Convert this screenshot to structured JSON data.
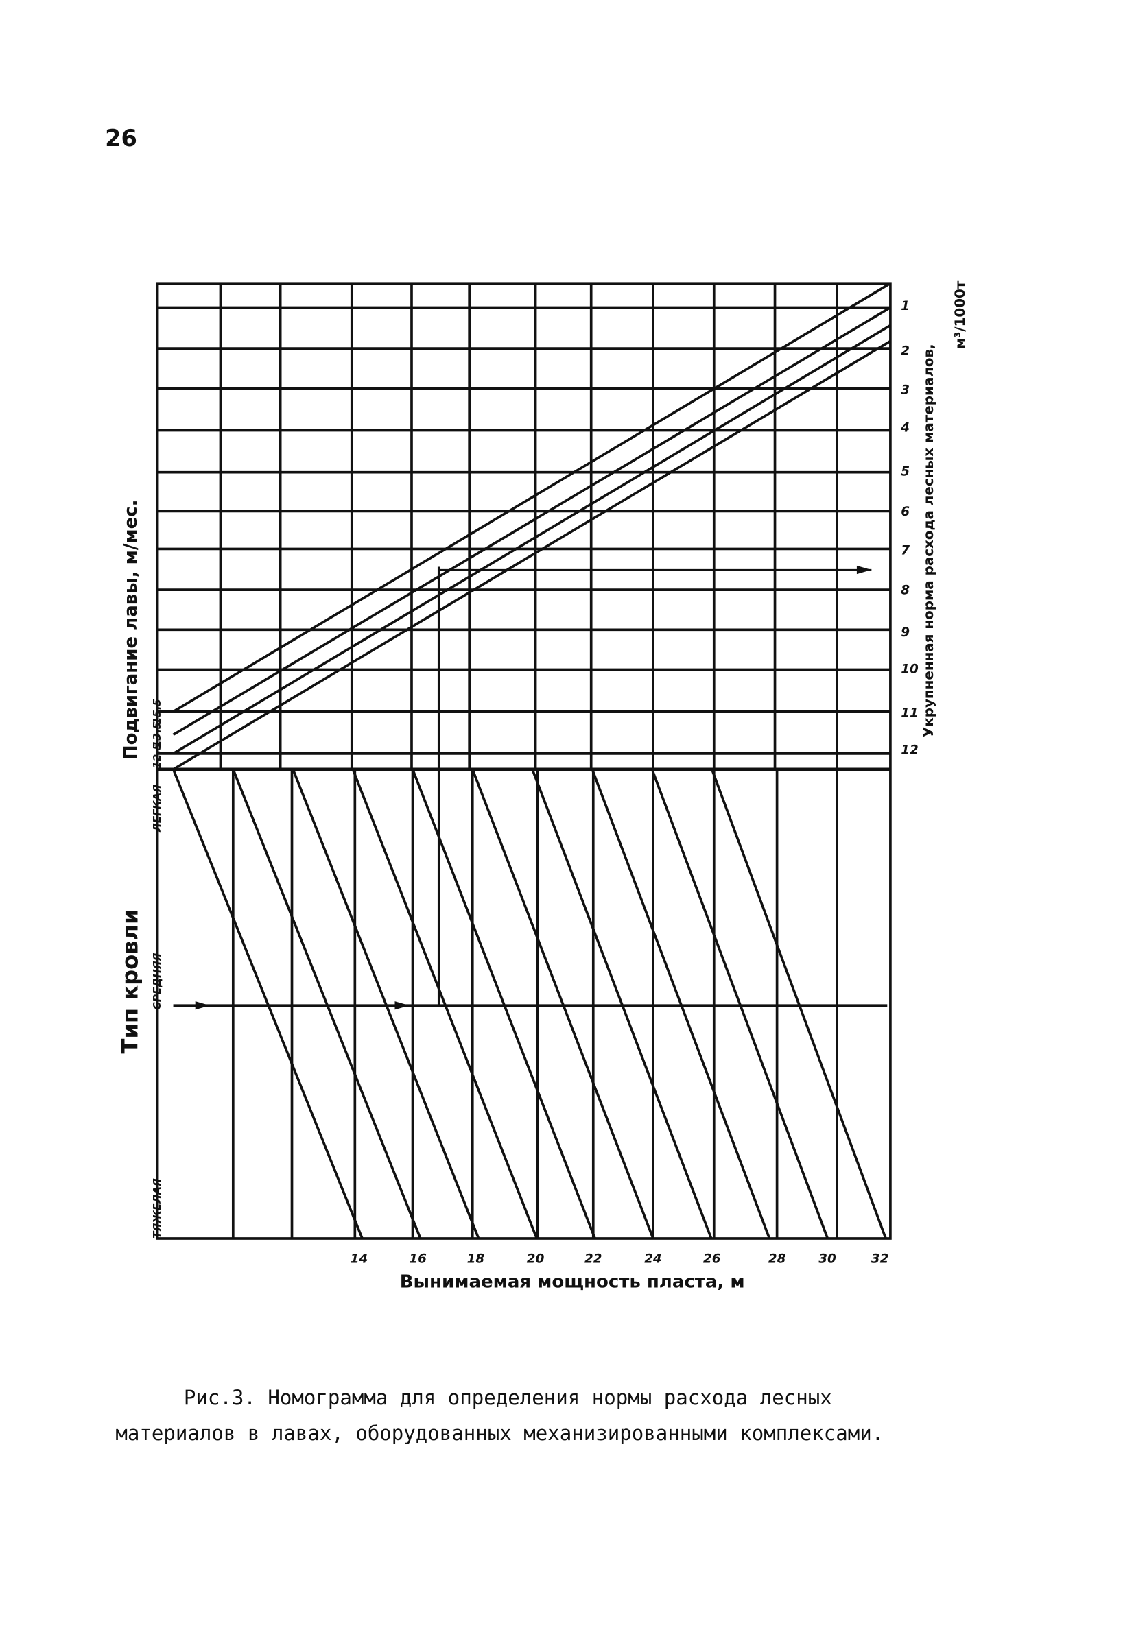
{
  "page_number": "26",
  "nomogram": {
    "left_axis_label": "Подвигание лавы, м/мес.",
    "left_ticks": [
      "15.5",
      "13.5",
      "12.5"
    ],
    "roof_label": "Тип кровли",
    "roof_types": [
      "ЛЕГКАЯ",
      "СРЕДНЯЯ",
      "ТЯЖЕЛАЯ"
    ],
    "right_axis_label": "Укрупненная норма расхода лесных материалов,",
    "right_axis_unit": "м³/1000т",
    "right_ticks": [
      "1",
      "2",
      "3",
      "4",
      "5",
      "6",
      "7",
      "8",
      "9",
      "10",
      "11",
      "12"
    ],
    "bottom_axis_label": "Вынимаемая мощность пласта, м",
    "bottom_ticks": [
      "14",
      "16",
      "18",
      "20",
      "22",
      "24",
      "26",
      "28",
      "30",
      "32"
    ]
  },
  "caption": [
    "Рис.3. Номограмма для определения нормы расхода лесных",
    "материалов в лавах, оборудованных механизированными комплексами."
  ]
}
